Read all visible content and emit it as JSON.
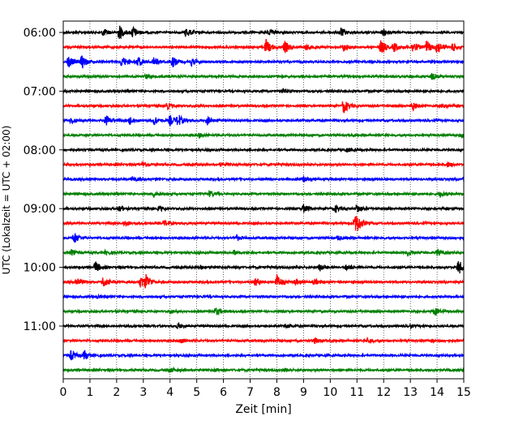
{
  "chart_data": {
    "type": "line",
    "chart_kind": "helicorder",
    "xlabel": "Zeit  [min]",
    "ylabel": "UTC (Lokalzeit = UTC + 02:00)",
    "xlim": [
      0,
      15
    ],
    "x_ticks": [
      0,
      1,
      2,
      3,
      4,
      5,
      6,
      7,
      8,
      9,
      10,
      11,
      12,
      13,
      14,
      15
    ],
    "x_tick_labels": [
      "0",
      "1",
      "2",
      "3",
      "4",
      "5",
      "6",
      "7",
      "8",
      "9",
      "10",
      "11",
      "12",
      "13",
      "14",
      "15"
    ],
    "y_tick_labels": [
      "06:00",
      "07:00",
      "08:00",
      "09:00",
      "10:00",
      "11:00"
    ],
    "grid": "vertical dotted lines at each minute",
    "trace_colors": [
      "#000000",
      "#ff0000",
      "#0000ff",
      "#008000"
    ],
    "trace_start_times": [
      "06:00",
      "06:15",
      "06:30",
      "06:45",
      "07:00",
      "07:15",
      "07:30",
      "07:45",
      "08:00",
      "08:15",
      "08:30",
      "08:45",
      "09:00",
      "09:15",
      "09:30",
      "09:45",
      "10:00",
      "10:15",
      "10:30",
      "10:45",
      "11:00",
      "11:15",
      "11:30",
      "11:45"
    ],
    "events": [
      [
        [
          1.5,
          0.5
        ],
        [
          2.1,
          1.0
        ],
        [
          2.6,
          0.8
        ],
        [
          4.6,
          0.7
        ],
        [
          7.7,
          0.4
        ],
        [
          10.4,
          0.6
        ],
        [
          12.0,
          0.5
        ]
      ],
      [
        [
          7.6,
          1.0
        ],
        [
          8.3,
          0.8
        ],
        [
          9.1,
          0.4
        ],
        [
          10.5,
          0.5
        ],
        [
          11.9,
          1.0
        ],
        [
          12.4,
          0.6
        ],
        [
          13.1,
          0.8
        ],
        [
          13.6,
          0.9
        ],
        [
          14.0,
          0.9
        ],
        [
          14.6,
          0.6
        ]
      ],
      [
        [
          0.2,
          0.8
        ],
        [
          0.7,
          0.9
        ],
        [
          2.2,
          0.7
        ],
        [
          2.8,
          0.7
        ],
        [
          3.4,
          0.6
        ],
        [
          4.1,
          0.7
        ],
        [
          4.8,
          0.5
        ]
      ],
      [
        [
          3.1,
          0.3
        ],
        [
          13.8,
          0.4
        ]
      ],
      [
        [
          8.2,
          0.3
        ]
      ],
      [
        [
          3.9,
          0.4
        ],
        [
          10.5,
          1.0
        ],
        [
          13.1,
          0.6
        ],
        [
          14.2,
          0.3
        ]
      ],
      [
        [
          0.3,
          0.4
        ],
        [
          1.6,
          0.7
        ],
        [
          2.5,
          0.6
        ],
        [
          3.4,
          0.6
        ],
        [
          4.0,
          0.7
        ],
        [
          4.3,
          0.8
        ],
        [
          5.4,
          0.5
        ]
      ],
      [
        [
          5.1,
          0.3
        ],
        [
          14.9,
          0.3
        ]
      ],
      [
        [
          10.6,
          0.3
        ]
      ],
      [
        [
          3.0,
          0.4
        ],
        [
          5.9,
          0.3
        ],
        [
          14.4,
          0.3
        ]
      ],
      [
        [
          2.6,
          0.3
        ],
        [
          9.0,
          0.3
        ],
        [
          15.0,
          0.3
        ]
      ],
      [
        [
          3.4,
          0.4
        ],
        [
          5.5,
          0.4
        ],
        [
          14.1,
          0.4
        ]
      ],
      [
        [
          2.1,
          0.4
        ],
        [
          3.6,
          0.3
        ],
        [
          9.0,
          0.5
        ],
        [
          10.2,
          0.4
        ],
        [
          11.0,
          0.6
        ]
      ],
      [
        [
          2.3,
          0.4
        ],
        [
          3.8,
          0.4
        ],
        [
          10.9,
          0.8
        ],
        [
          11.0,
          1.0
        ]
      ],
      [
        [
          0.4,
          0.8
        ],
        [
          6.5,
          0.3
        ],
        [
          10.3,
          0.3
        ]
      ],
      [
        [
          0.3,
          0.4
        ],
        [
          1.6,
          0.3
        ],
        [
          6.4,
          0.3
        ],
        [
          12.9,
          0.4
        ],
        [
          14.0,
          0.5
        ]
      ],
      [
        [
          1.2,
          0.8
        ],
        [
          5.1,
          0.3
        ],
        [
          9.6,
          0.5
        ],
        [
          10.6,
          0.4
        ],
        [
          14.8,
          1.0
        ]
      ],
      [
        [
          0.5,
          0.6
        ],
        [
          1.5,
          0.8
        ],
        [
          2.9,
          0.8
        ],
        [
          3.1,
          0.9
        ],
        [
          7.2,
          0.5
        ],
        [
          8.0,
          1.0
        ],
        [
          8.7,
          0.4
        ],
        [
          9.4,
          0.4
        ]
      ],
      [
        [
          1.3,
          0.2
        ]
      ],
      [
        [
          4.0,
          0.3
        ],
        [
          5.7,
          0.5
        ],
        [
          13.9,
          0.5
        ]
      ],
      [
        [
          4.3,
          0.3
        ],
        [
          8.3,
          0.3
        ],
        [
          13.0,
          0.2
        ]
      ],
      [
        [
          4.4,
          0.4
        ],
        [
          9.4,
          0.4
        ],
        [
          11.4,
          0.3
        ],
        [
          13.8,
          0.2
        ]
      ],
      [
        [
          0.3,
          0.7
        ],
        [
          0.8,
          0.6
        ]
      ],
      [
        [
          4.0,
          0.3
        ],
        [
          5.7,
          0.2
        ],
        [
          8.3,
          0.2
        ]
      ]
    ]
  }
}
